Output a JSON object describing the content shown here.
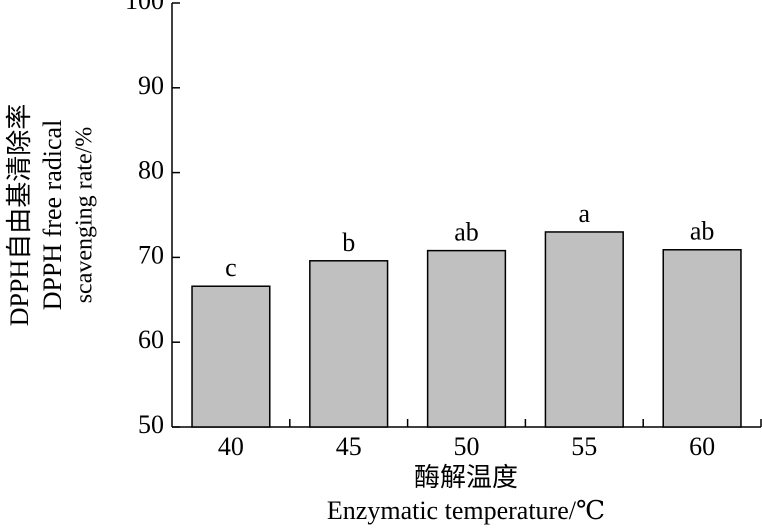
{
  "chart_data": {
    "type": "bar",
    "y_label": [
      "DPPH自由基清除率",
      "DPPH free radical",
      "scavenging rate/%"
    ],
    "x_label": [
      "酶解温度",
      "Enzymatic temperature/℃"
    ],
    "categories": [
      "40",
      "45",
      "50",
      "55",
      "60"
    ],
    "values": [
      66.6,
      69.6,
      70.8,
      73.0,
      70.9
    ],
    "annotations": [
      "c",
      "b",
      "ab",
      "a",
      "ab"
    ],
    "color": "#c0c0c0",
    "ylim": [
      50,
      100
    ],
    "yticks": [
      50,
      60,
      70,
      80,
      90,
      100
    ],
    "grid": false
  }
}
